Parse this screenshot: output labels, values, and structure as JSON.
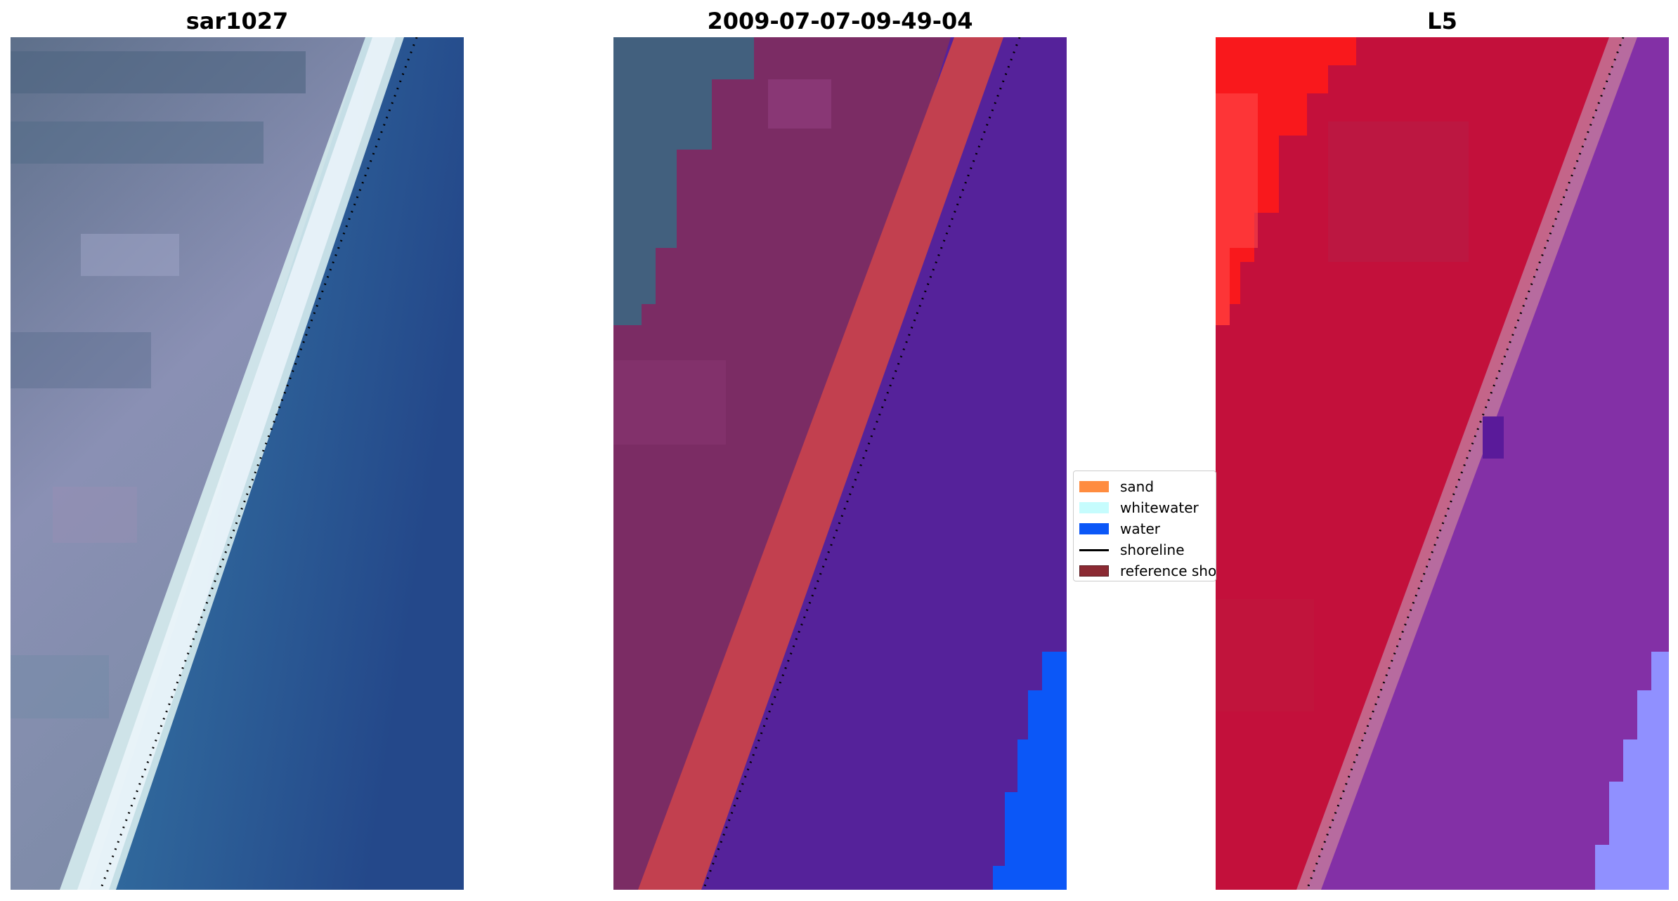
{
  "panels": [
    {
      "title": "sar1027"
    },
    {
      "title": "2009-07-07-09-49-04"
    },
    {
      "title": "L5"
    }
  ],
  "legend": {
    "items": [
      {
        "label": "sand",
        "type": "patch",
        "color": "#ff8c3f"
      },
      {
        "label": "whitewater",
        "type": "patch",
        "color": "#c6fcfd"
      },
      {
        "label": "water",
        "type": "patch",
        "color": "#0b57f7"
      },
      {
        "label": "shoreline",
        "type": "line",
        "color": "#000000"
      },
      {
        "label": "reference shoreline",
        "type": "patch",
        "color": "#8b2a33"
      }
    ]
  },
  "colors": {
    "land_rgb": "#7d86a8",
    "surf_rgb": "#dfeef0",
    "sea_rgb": "#2f76a5",
    "land_class": "#7b2c64",
    "sand_band": "#c2404f",
    "water_class": "#55229a",
    "water_patch": "#0b57f7",
    "land_index": "#c3103b",
    "sea_index": "#8330a6",
    "bright_red": "#ff1a1a",
    "light_violet": "#9090ff"
  }
}
